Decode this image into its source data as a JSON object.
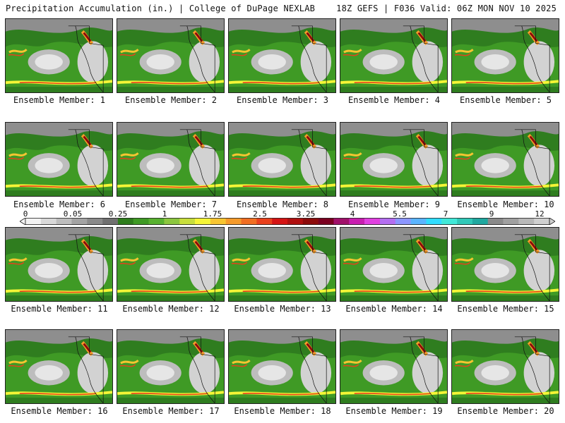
{
  "header": {
    "title": "Precipitation Accumulation (in.) | College of DuPage NEXLAB",
    "run_info": "18Z GEFS | F036 Valid: 06Z MON NOV 10 2025"
  },
  "members": [
    "Ensemble Member: 1",
    "Ensemble Member: 2",
    "Ensemble Member: 3",
    "Ensemble Member: 4",
    "Ensemble Member: 5",
    "Ensemble Member: 6",
    "Ensemble Member: 7",
    "Ensemble Member: 8",
    "Ensemble Member: 9",
    "Ensemble Member: 10",
    "Ensemble Member: 11",
    "Ensemble Member: 12",
    "Ensemble Member: 13",
    "Ensemble Member: 14",
    "Ensemble Member: 15",
    "Ensemble Member: 16",
    "Ensemble Member: 17",
    "Ensemble Member: 18",
    "Ensemble Member: 19",
    "Ensemble Member: 20"
  ],
  "colorbar": {
    "ticks": [
      "0",
      "0.05",
      "0.25",
      "1",
      "1.75",
      "2.5",
      "3.25",
      "4",
      "5.5",
      "7",
      "9",
      "12"
    ],
    "colors": [
      "#f2f2f2",
      "#d8d8d8",
      "#bdbdbd",
      "#a3a3a3",
      "#8a8a8a",
      "#707070",
      "#2e7d1c",
      "#3f9a25",
      "#58b12f",
      "#8cc63f",
      "#c8de3c",
      "#f5f536",
      "#f7c531",
      "#f59a2a",
      "#f06e22",
      "#e8401c",
      "#d41414",
      "#b01010",
      "#8c0b0b",
      "#7a0020",
      "#a0106a",
      "#c81eb0",
      "#e040e0",
      "#b46ef0",
      "#8c96ff",
      "#5ab4ff",
      "#30dcff",
      "#40e8d8",
      "#30c8b8",
      "#20a8a0",
      "#8a8a8a",
      "#a0a0a0",
      "#b8b8b8",
      "#d0d0d0"
    ]
  }
}
